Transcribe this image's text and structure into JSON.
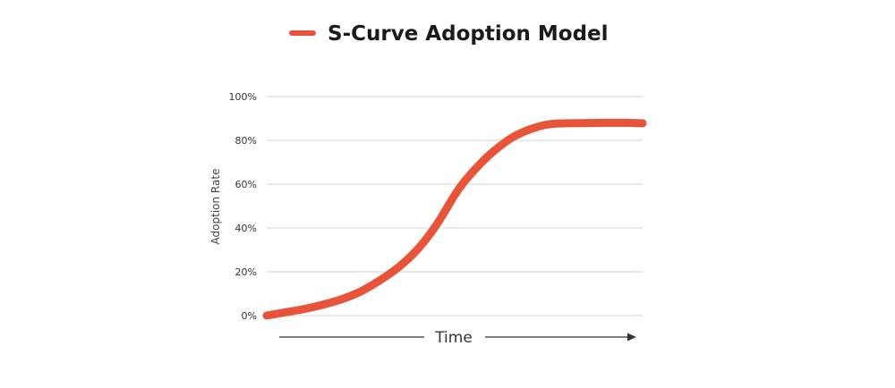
{
  "chart_data": {
    "type": "line",
    "title": "S-Curve Adoption Model",
    "xlabel": "Time",
    "ylabel": "Adoption Rate",
    "yticks": [
      "0%",
      "20%",
      "40%",
      "60%",
      "80%",
      "100%"
    ],
    "ytick_values": [
      0,
      20,
      40,
      60,
      80,
      100
    ],
    "ylim": [
      0,
      100
    ],
    "xlim": [
      0,
      100
    ],
    "grid": true,
    "legend": "top-center",
    "series": [
      {
        "name": "S-Curve Adoption Model",
        "color": "#e8543a",
        "x": [
          0,
          5,
          10,
          15,
          20,
          25,
          30,
          35,
          40,
          45,
          50,
          52.5,
          55,
          57.5,
          60,
          65,
          70,
          75,
          80,
          85,
          90,
          95,
          100
        ],
        "y": [
          0,
          1.5,
          3,
          5,
          7.5,
          11,
          16,
          22,
          30,
          41,
          55,
          61,
          66,
          70.5,
          74.5,
          81,
          85,
          87.3,
          87.8,
          87.9,
          88,
          88,
          87.8
        ]
      }
    ]
  }
}
